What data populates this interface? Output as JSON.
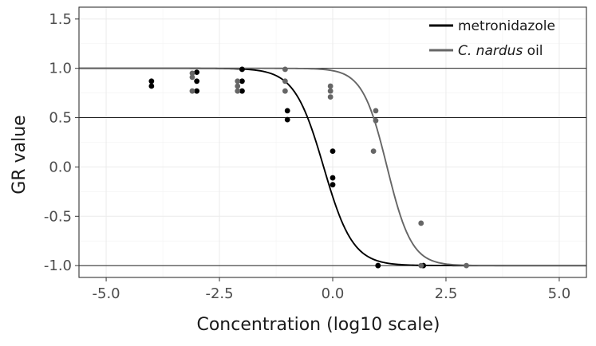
{
  "chart_data": {
    "type": "scatter",
    "title": "",
    "xlabel": "Concentration (log10 scale)",
    "ylabel": "GR value",
    "xlim": [
      -5.6,
      5.6
    ],
    "ylim": [
      -1.12,
      1.62
    ],
    "x_ticks": [
      -5.0,
      -2.5,
      0.0,
      2.5,
      5.0
    ],
    "x_tick_labels": [
      "-5.0",
      "-2.5",
      "0.0",
      "2.5",
      "5.0"
    ],
    "y_ticks": [
      -1.0,
      -0.5,
      0.0,
      0.5,
      1.0,
      1.5
    ],
    "y_tick_labels": [
      "-1.0",
      "-0.5",
      "0.0",
      "0.5",
      "1.0",
      "1.5"
    ],
    "hlines": [
      -1.0,
      0.5,
      1.0
    ],
    "legend_position": "top-right",
    "series": [
      {
        "name": "metronidazole",
        "color": "#000000",
        "fit": {
          "model": "sigmoid",
          "top": 1.0,
          "bottom": -1.0,
          "ec50": -0.2,
          "hill": 1.35
        },
        "points": [
          [
            -4,
            0.87
          ],
          [
            -4,
            0.82
          ],
          [
            -3,
            0.96
          ],
          [
            -3,
            0.87
          ],
          [
            -3,
            0.77
          ],
          [
            -2,
            0.99
          ],
          [
            -2,
            0.87
          ],
          [
            -2,
            0.77
          ],
          [
            -1,
            0.57
          ],
          [
            -1,
            0.48
          ],
          [
            0,
            0.16
          ],
          [
            0,
            -0.11
          ],
          [
            0,
            -0.18
          ],
          [
            1,
            -1.0
          ],
          [
            1,
            -1.0
          ],
          [
            2,
            -1.0
          ],
          [
            2,
            -1.0
          ]
        ]
      },
      {
        "name": "C. nardus oil",
        "name_italic": "C. nardus",
        "name_rest": " oil",
        "color": "#666666",
        "fit": {
          "model": "sigmoid",
          "top": 1.0,
          "bottom": -1.0,
          "ec50": 1.2,
          "hill": 1.6
        },
        "points": [
          [
            -3.1,
            0.95
          ],
          [
            -3.1,
            0.91
          ],
          [
            -3.1,
            0.77
          ],
          [
            -2.1,
            0.87
          ],
          [
            -2.1,
            0.82
          ],
          [
            -2.1,
            0.77
          ],
          [
            -1.05,
            0.99
          ],
          [
            -1.05,
            0.87
          ],
          [
            -1.05,
            0.77
          ],
          [
            -0.05,
            0.82
          ],
          [
            -0.05,
            0.77
          ],
          [
            -0.05,
            0.71
          ],
          [
            0.95,
            0.57
          ],
          [
            0.95,
            0.47
          ],
          [
            0.9,
            0.16
          ],
          [
            1.95,
            -0.57
          ],
          [
            1.95,
            -1.0
          ],
          [
            2.95,
            -1.0
          ]
        ]
      }
    ]
  }
}
